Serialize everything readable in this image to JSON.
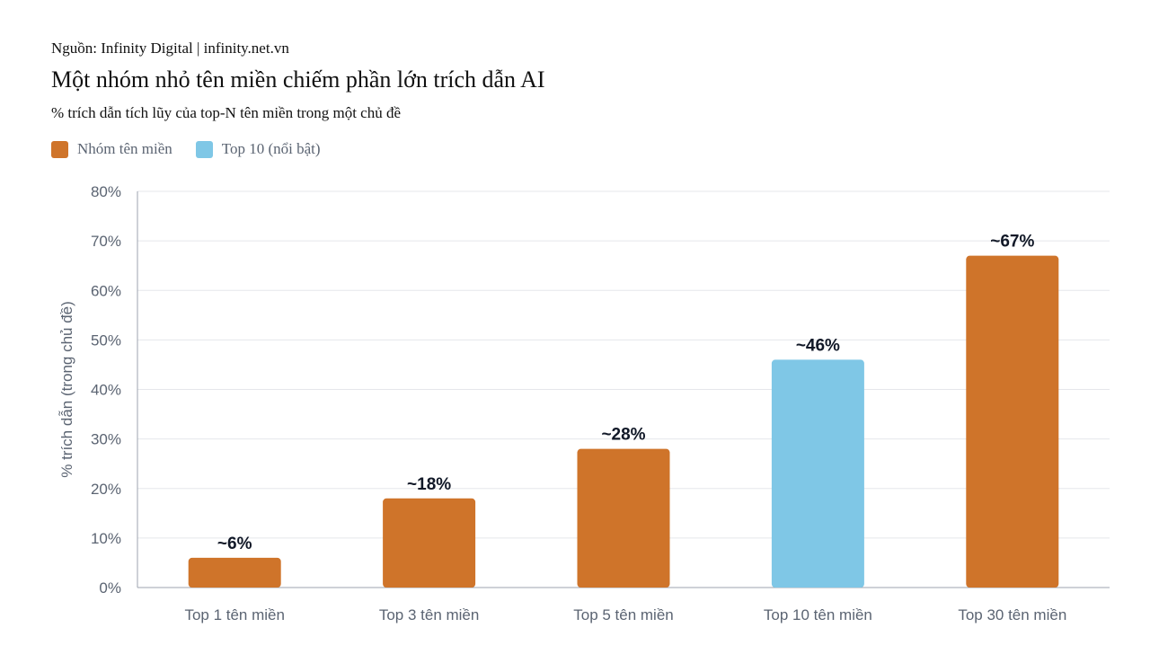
{
  "source": "Nguồn: Infinity Digital | infinity.net.vn",
  "chart_data": {
    "type": "bar",
    "title": "Một nhóm nhỏ tên miền chiếm phần lớn trích dẫn AI",
    "subtitle": "% trích dẫn tích lũy của top-N tên miền trong một chủ đề",
    "ylabel": "% trích dẫn (trong chủ đề)",
    "xlabel": "",
    "categories": [
      "Top 1 tên miền",
      "Top 3 tên miền",
      "Top 5 tên miền",
      "Top 10 tên miền",
      "Top 30 tên miền"
    ],
    "values": [
      6,
      18,
      28,
      46,
      67
    ],
    "data_labels": [
      "~6%",
      "~18%",
      "~28%",
      "~46%",
      "~67%"
    ],
    "highlight_index": 3,
    "ylim": [
      0,
      80
    ],
    "yticks": [
      0,
      10,
      20,
      30,
      40,
      50,
      60,
      70,
      80
    ],
    "ytick_labels": [
      "0%",
      "10%",
      "20%",
      "30%",
      "40%",
      "50%",
      "60%",
      "70%",
      "80%"
    ],
    "grid": true,
    "legend_position": "top-left",
    "legend": [
      {
        "label": "Nhóm tên miền",
        "color": "#cf742a"
      },
      {
        "label": "Top 10 (nổi bật)",
        "color": "#7fc7e6"
      }
    ],
    "colors": {
      "base": "#cf742a",
      "highlight": "#7fc7e6",
      "grid": "#e5e7eb",
      "axis": "#9ca3af"
    }
  }
}
